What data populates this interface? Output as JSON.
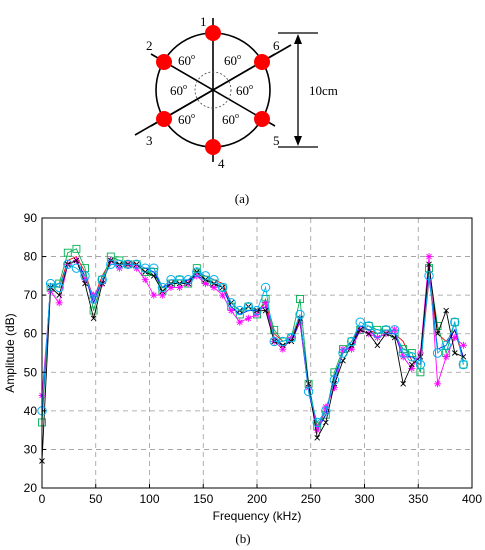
{
  "diagram": {
    "sensor_labels": [
      "1",
      "2",
      "3",
      "4",
      "5",
      "6"
    ],
    "angle_label": "60",
    "angle_unit": "o",
    "dimension_label": "10cm",
    "caption": "(a)"
  },
  "chart_caption": "(b)",
  "colors": {
    "sensor": "#ff0000",
    "series": [
      "#ff0000",
      "#00b050",
      "#0000ff",
      "#ff00ff",
      "#000000",
      "#00b0f0"
    ]
  },
  "chart_data": {
    "type": "line",
    "xlabel": "Frequency (kHz)",
    "ylabel": "Amplitude (dB)",
    "xlim": [
      0,
      400
    ],
    "ylim": [
      20,
      90
    ],
    "xticks": [
      0,
      50,
      100,
      150,
      200,
      250,
      300,
      350,
      400
    ],
    "yticks": [
      20,
      30,
      40,
      50,
      60,
      70,
      80,
      90
    ],
    "grid": true,
    "x": [
      0,
      8,
      16,
      24,
      32,
      40,
      48,
      56,
      64,
      72,
      80,
      88,
      96,
      104,
      112,
      120,
      128,
      136,
      144,
      152,
      160,
      168,
      176,
      184,
      192,
      200,
      208,
      216,
      224,
      232,
      240,
      248,
      256,
      264,
      272,
      280,
      288,
      296,
      304,
      312,
      320,
      328,
      336,
      344,
      352,
      360,
      368,
      376,
      384,
      392
    ],
    "series": [
      {
        "marker": "none",
        "values": [
          38,
          73,
          72,
          79,
          80,
          76,
          69,
          75,
          79,
          78,
          79,
          78,
          77,
          77,
          72,
          74,
          73,
          74,
          76,
          75,
          74,
          73,
          68,
          66,
          67,
          66,
          68,
          60,
          58,
          59,
          64,
          46,
          36,
          40,
          48,
          55,
          58,
          62,
          61,
          60,
          61,
          60,
          58,
          53,
          52,
          74,
          60,
          58,
          61,
          53
        ]
      },
      {
        "marker": "square",
        "values": [
          37,
          72,
          73,
          81,
          82,
          77,
          66,
          74,
          80,
          79,
          78,
          78,
          76,
          76,
          71,
          73,
          74,
          73,
          77,
          74,
          73,
          72,
          67,
          65,
          67,
          65,
          69,
          61,
          58,
          59,
          69,
          47,
          36,
          39,
          50,
          56,
          58,
          61,
          62,
          61,
          61,
          60,
          56,
          55,
          50,
          77,
          62,
          55,
          63,
          52
        ]
      },
      {
        "marker": "none",
        "values": [
          39,
          73,
          72,
          78,
          79,
          75,
          68,
          74,
          78,
          78,
          78,
          78,
          77,
          76,
          72,
          73,
          73,
          74,
          75,
          74,
          73,
          72,
          67,
          65,
          66,
          66,
          67,
          59,
          57,
          58,
          63,
          45,
          35,
          39,
          49,
          55,
          57,
          62,
          61,
          59,
          60,
          60,
          54,
          54,
          53,
          75,
          56,
          57,
          61,
          54
        ]
      },
      {
        "marker": "star",
        "values": [
          44,
          71,
          68,
          78,
          79,
          74,
          70,
          73,
          79,
          77,
          78,
          77,
          74,
          70,
          70,
          72,
          72,
          73,
          75,
          73,
          72,
          70,
          66,
          63,
          64,
          65,
          68,
          58,
          56,
          59,
          63,
          46,
          35,
          41,
          46,
          56,
          56,
          61,
          60,
          59,
          60,
          61,
          54,
          51,
          55,
          80,
          47,
          54,
          59,
          57
        ]
      },
      {
        "marker": "x",
        "values": [
          27,
          72,
          70,
          78,
          79,
          73,
          64,
          73,
          79,
          78,
          78,
          78,
          76,
          75,
          71,
          73,
          73,
          73,
          76,
          74,
          73,
          72,
          68,
          66,
          67,
          66,
          66,
          58,
          57,
          58,
          64,
          47,
          33,
          37,
          47,
          53,
          57,
          61,
          60,
          57,
          60,
          59,
          47,
          52,
          54,
          78,
          60,
          66,
          55,
          54
        ]
      },
      {
        "marker": "circle",
        "values": [
          40,
          73,
          72,
          78,
          77,
          75,
          69,
          74,
          78,
          78,
          78,
          78,
          77,
          77,
          72,
          74,
          74,
          74,
          76,
          75,
          74,
          72,
          68,
          66,
          67,
          66,
          72,
          58,
          58,
          59,
          65,
          45,
          37,
          40,
          48,
          55,
          58,
          63,
          62,
          60,
          61,
          61,
          55,
          54,
          52,
          75,
          55,
          57,
          63,
          52
        ]
      }
    ]
  }
}
